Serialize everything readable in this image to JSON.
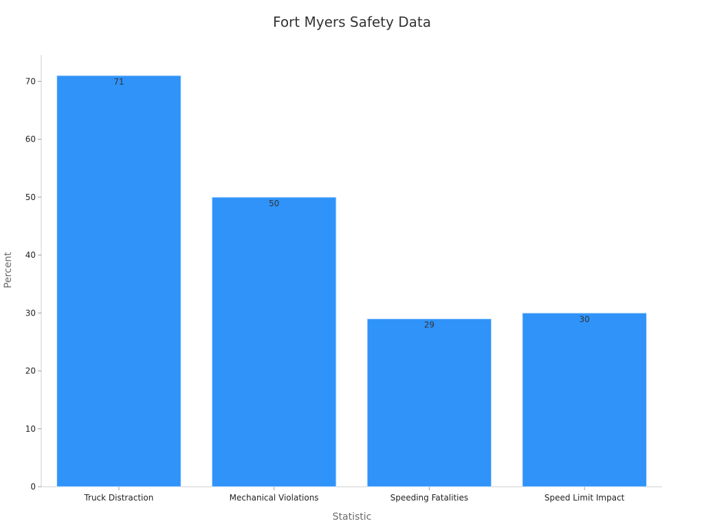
{
  "chart_data": {
    "type": "bar",
    "title": "Fort Myers Safety Data",
    "xlabel": "Statistic",
    "ylabel": "Percent",
    "categories": [
      "Truck Distraction",
      "Mechanical Violations",
      "Speeding Fatalities",
      "Speed Limit Impact"
    ],
    "values": [
      71,
      50,
      29,
      30
    ],
    "ylim": [
      0,
      74.55
    ],
    "yticks": [
      0,
      10,
      20,
      30,
      40,
      50,
      60,
      70
    ],
    "bar_color": "#2f93f9",
    "bar_edge_color": "#d6e9fd",
    "grid": false,
    "legend": "none",
    "show_data_labels": true
  }
}
